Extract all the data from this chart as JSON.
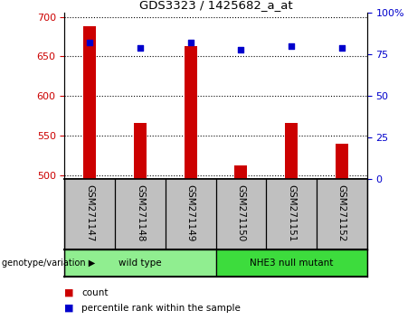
{
  "title": "GDS3323 / 1425682_a_at",
  "samples": [
    "GSM271147",
    "GSM271148",
    "GSM271149",
    "GSM271150",
    "GSM271151",
    "GSM271152"
  ],
  "counts": [
    688,
    566,
    663,
    512,
    566,
    540
  ],
  "percentile_ranks": [
    82,
    79,
    82,
    78,
    80,
    79
  ],
  "ylim_left": [
    495,
    705
  ],
  "ylim_right": [
    0,
    100
  ],
  "yticks_left": [
    500,
    550,
    600,
    650,
    700
  ],
  "yticks_right": [
    0,
    25,
    50,
    75,
    100
  ],
  "groups": [
    {
      "label": "wild type",
      "indices": [
        0,
        1,
        2
      ],
      "color": "#90ee90"
    },
    {
      "label": "NHE3 null mutant",
      "indices": [
        3,
        4,
        5
      ],
      "color": "#3ddc3d"
    }
  ],
  "group_label": "genotype/variation",
  "bar_color": "#cc0000",
  "dot_color": "#0000cc",
  "bar_width": 0.25,
  "legend_items": [
    {
      "label": "count",
      "color": "#cc0000"
    },
    {
      "label": "percentile rank within the sample",
      "color": "#0000cc"
    }
  ],
  "tick_label_color_left": "#cc0000",
  "tick_label_color_right": "#0000cc",
  "xlabel_area_color": "#c0c0c0"
}
